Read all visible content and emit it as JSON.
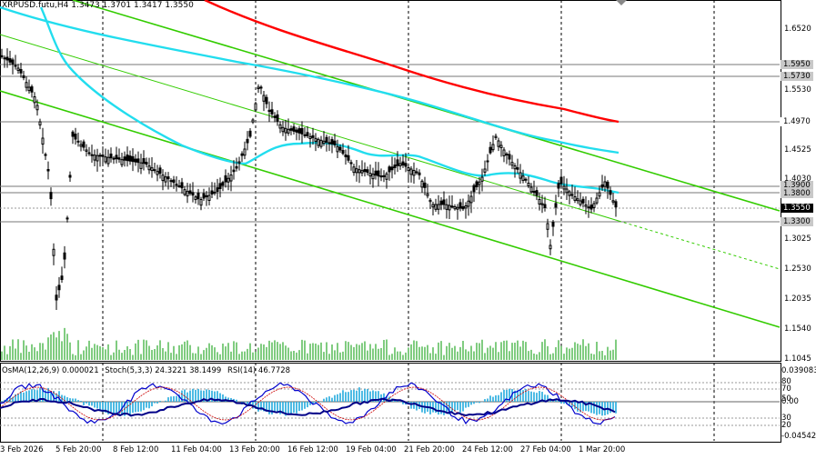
{
  "symbol_info": {
    "symbol": "XRPUSD.futu,H4",
    "ohlc": "1.3473 1.3701 1.3417 1.3550"
  },
  "indicators": {
    "osma": "OsMA(12,26,9) 0.000021",
    "stoch": "Stoch(5,3,3) 24.3221 38.1499",
    "rsi": "RSI(14) 46.7728"
  },
  "price_axis": [
    "1.6520",
    "1.5530",
    "1.4525",
    "1.4030",
    "1.3025",
    "1.2530",
    "1.2035",
    "1.1540",
    "1.1045"
  ],
  "highlighted_prices": [
    {
      "value": "1.5950",
      "bg": "#c8c8c8"
    },
    {
      "value": "1.5730",
      "bg": "#c8c8c8"
    },
    {
      "value": "1.4970",
      "bg": "#ffffff"
    },
    {
      "value": "1.3900",
      "bg": "#c8c8c8"
    },
    {
      "value": "1.3800",
      "bg": "#c8c8c8"
    },
    {
      "value": "1.3550",
      "bg": "#000000"
    },
    {
      "value": "1.3300",
      "bg": "#c8c8c8"
    }
  ],
  "indicator_axis": [
    "0.039083",
    "80",
    "70",
    "50",
    "0.00",
    "30",
    "20",
    "-0.045426"
  ],
  "time_axis": [
    "3 Feb 2026",
    "5 Feb 20:00",
    "8 Feb 12:00",
    "11 Feb 04:00",
    "13 Feb 20:00",
    "16 Feb 12:00",
    "19 Feb 04:00",
    "21 Feb 20:00",
    "24 Feb 12:00",
    "27 Feb 04:00",
    "1 Mar 20:00"
  ],
  "colors": {
    "candles": "#000000",
    "ma_red": "#ff0000",
    "ma_cyan": "#22ddee",
    "channel_green": "#33cc00",
    "osma_hist": "#22aadd",
    "stoch_main": "#0000cc",
    "rsi_line": "#000088",
    "grid": "#000000"
  }
}
